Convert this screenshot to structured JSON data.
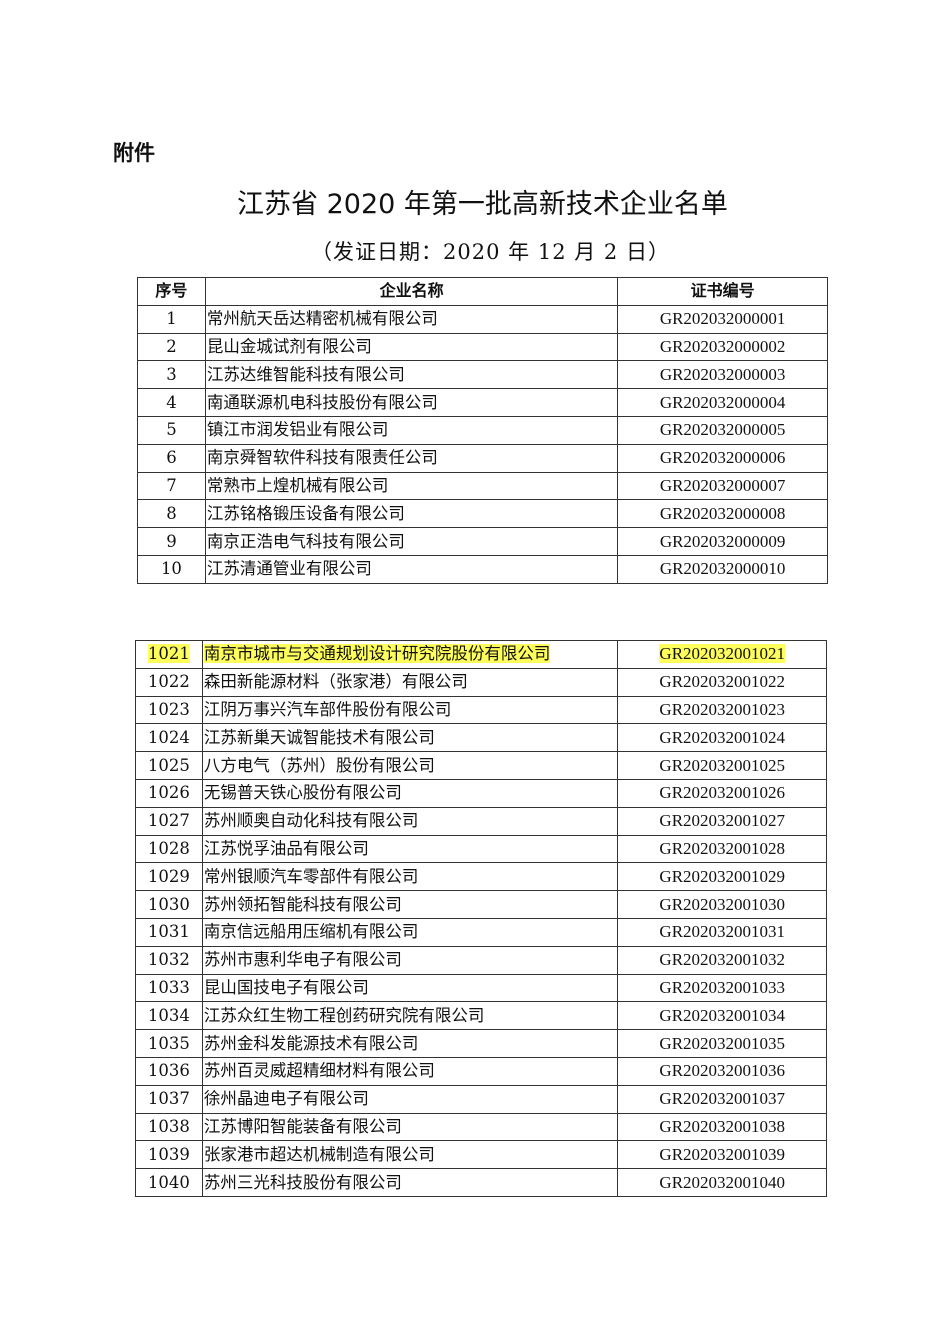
{
  "attachment_label": "附件",
  "title": "江苏省 2020 年第一批高新技术企业名单",
  "subtitle": "（发证日期：2020 年 12 月 2 日）",
  "highlight_color": "#ffff5c",
  "table": {
    "headers": [
      "序号",
      "企业名称",
      "证书编号"
    ],
    "rows_part1": [
      [
        "1",
        "常州航天岳达精密机械有限公司",
        "GR202032000001"
      ],
      [
        "2",
        "昆山金城试剂有限公司",
        "GR202032000002"
      ],
      [
        "3",
        "江苏达维智能科技有限公司",
        "GR202032000003"
      ],
      [
        "4",
        "南通联源机电科技股份有限公司",
        "GR202032000004"
      ],
      [
        "5",
        "镇江市润发铝业有限公司",
        "GR202032000005"
      ],
      [
        "6",
        "南京舜智软件科技有限责任公司",
        "GR202032000006"
      ],
      [
        "7",
        "常熟市上煌机械有限公司",
        "GR202032000007"
      ],
      [
        "8",
        "江苏铭格锻压设备有限公司",
        "GR202032000008"
      ],
      [
        "9",
        "南京正浩电气科技有限公司",
        "GR202032000009"
      ],
      [
        "10",
        "江苏清通管业有限公司",
        "GR202032000010"
      ]
    ],
    "rows_part2": [
      [
        "1021",
        "南京市城市与交通规划设计研究院股份有限公司",
        "GR202032001021"
      ],
      [
        "1022",
        "森田新能源材料（张家港）有限公司",
        "GR202032001022"
      ],
      [
        "1023",
        "江阴万事兴汽车部件股份有限公司",
        "GR202032001023"
      ],
      [
        "1024",
        "江苏新巢天诚智能技术有限公司",
        "GR202032001024"
      ],
      [
        "1025",
        "八方电气（苏州）股份有限公司",
        "GR202032001025"
      ],
      [
        "1026",
        "无锡普天铁心股份有限公司",
        "GR202032001026"
      ],
      [
        "1027",
        "苏州顺奥自动化科技有限公司",
        "GR202032001027"
      ],
      [
        "1028",
        "江苏悦孚油品有限公司",
        "GR202032001028"
      ],
      [
        "1029",
        "常州银顺汽车零部件有限公司",
        "GR202032001029"
      ],
      [
        "1030",
        "苏州领拓智能科技有限公司",
        "GR202032001030"
      ],
      [
        "1031",
        "南京信远船用压缩机有限公司",
        "GR202032001031"
      ],
      [
        "1032",
        "苏州市惠利华电子有限公司",
        "GR202032001032"
      ],
      [
        "1033",
        "昆山国技电子有限公司",
        "GR202032001033"
      ],
      [
        "1034",
        "江苏众红生物工程创药研究院有限公司",
        "GR202032001034"
      ],
      [
        "1035",
        "苏州金科发能源技术有限公司",
        "GR202032001035"
      ],
      [
        "1036",
        "苏州百灵威超精细材料有限公司",
        "GR202032001036"
      ],
      [
        "1037",
        "徐州晶迪电子有限公司",
        "GR202032001037"
      ],
      [
        "1038",
        "江苏博阳智能装备有限公司",
        "GR202032001038"
      ],
      [
        "1039",
        "张家港市超达机械制造有限公司",
        "GR202032001039"
      ],
      [
        "1040",
        "苏州三光科技股份有限公司",
        "GR202032001040"
      ]
    ],
    "highlighted_row": "1021"
  }
}
